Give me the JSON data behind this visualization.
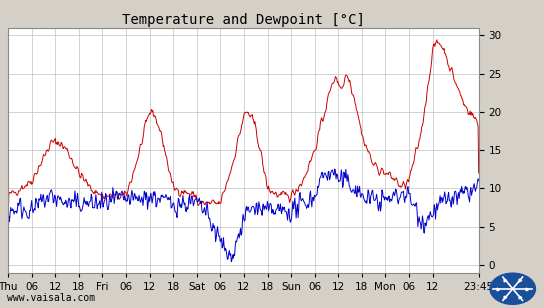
{
  "title": "Temperature and Dewpoint [°C]",
  "bg_color": "#d4d0c8",
  "plot_bg_color": "#ffffff",
  "grid_color": "#c0c0c0",
  "temp_color": "#cc0000",
  "dewp_color": "#0000cc",
  "line_width": 0.7,
  "ylim": [
    -1,
    31
  ],
  "yticks": [
    0,
    5,
    10,
    15,
    20,
    25,
    30
  ],
  "xtick_positions": [
    0,
    6,
    12,
    18,
    24,
    30,
    36,
    42,
    48,
    54,
    60,
    66,
    72,
    78,
    84,
    90,
    96,
    102,
    108,
    119.75
  ],
  "xtick_labels": [
    "Thu",
    "06",
    "12",
    "18",
    "Fri",
    "06",
    "12",
    "18",
    "Sat",
    "06",
    "12",
    "18",
    "Sun",
    "06",
    "12",
    "18",
    "Mon",
    "06",
    "12",
    "23:45"
  ],
  "watermark": "www.vaisala.com",
  "title_fontsize": 10,
  "tick_fontsize": 7.5,
  "watermark_fontsize": 7
}
